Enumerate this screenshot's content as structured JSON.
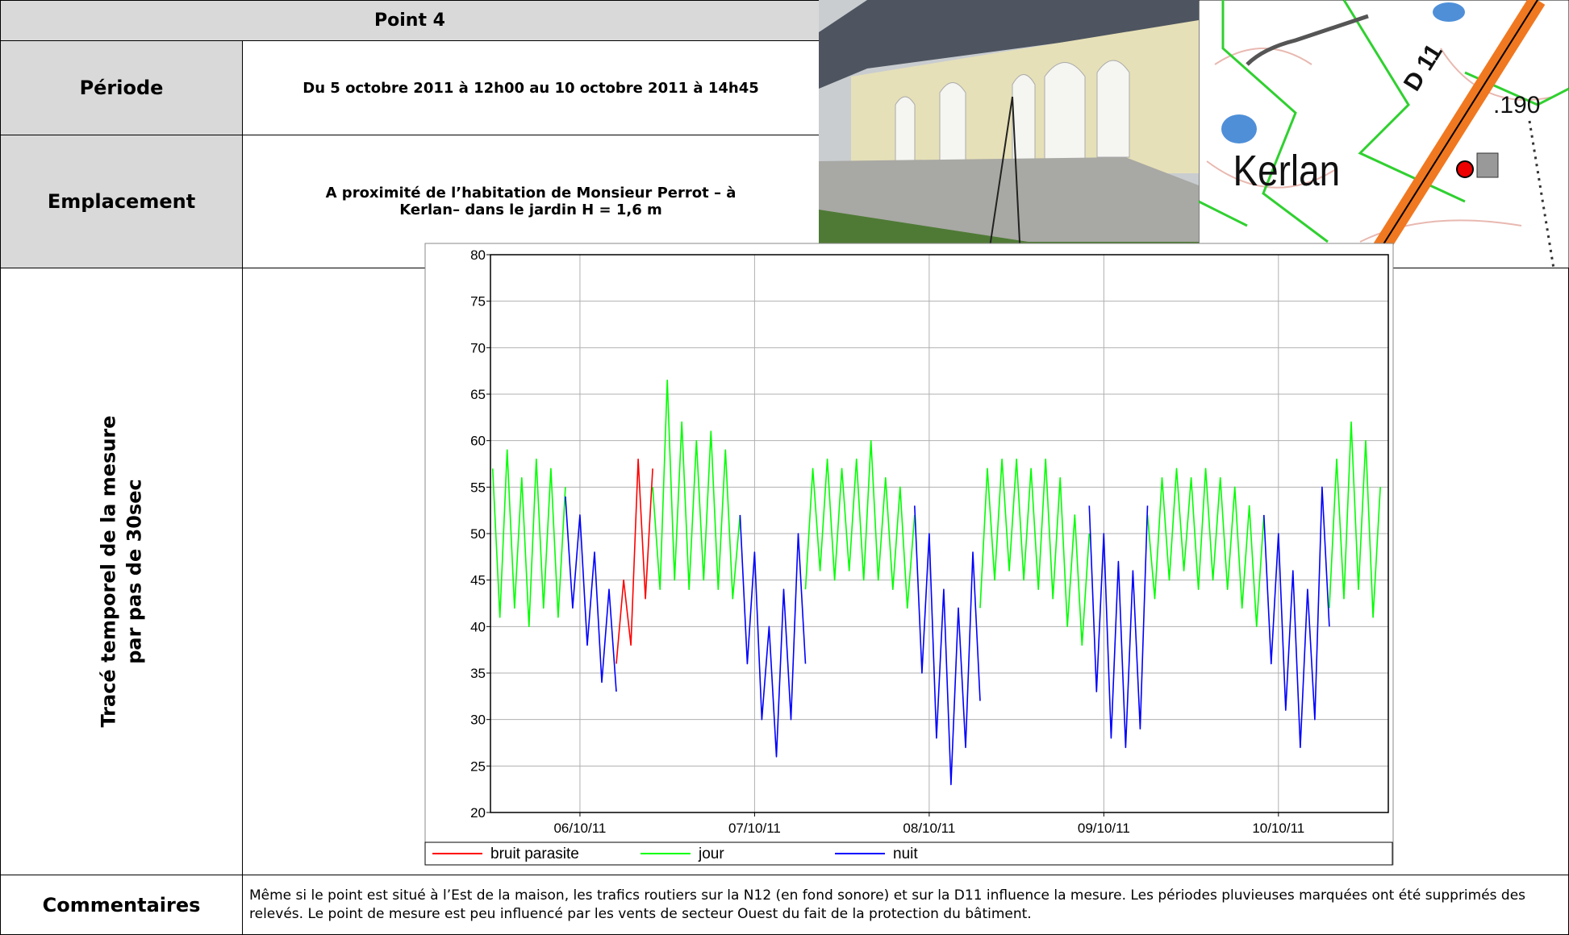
{
  "header": {
    "title": "Point 4"
  },
  "rows": [
    {
      "label": "Période",
      "lines": [
        "Du 5 octobre 2011 à 12h00 au 10 octobre 2011 à 14h45"
      ]
    },
    {
      "label": "Emplacement",
      "lines": [
        "A proximité de l’habitation de Monsieur Perrot – à",
        "Kerlan– dans le jardin H = 1,6 m"
      ]
    }
  ],
  "map": {
    "labels": [
      "Kerlan",
      "D 11",
      ".190"
    ]
  },
  "chart_label": [
    "Tracé temporel de la mesure",
    "par pas de 30sec"
  ],
  "chart_data": {
    "type": "line",
    "grid": true,
    "legend": "bottom",
    "xlim": [
      11.7,
      135.1
    ],
    "xticks": [
      {
        "value": 24,
        "label": "06/10/11"
      },
      {
        "value": 48,
        "label": "07/10/11"
      },
      {
        "value": 72,
        "label": "08/10/11"
      },
      {
        "value": 96,
        "label": "09/10/11"
      },
      {
        "value": 120,
        "label": "10/10/11"
      }
    ],
    "ylim": [
      20,
      80
    ],
    "yticks": [
      20,
      25,
      30,
      35,
      40,
      45,
      50,
      55,
      60,
      65,
      70,
      75,
      80
    ],
    "series": [
      {
        "name": "bruit parasite",
        "color": "#ff0000",
        "x": [
          29,
          30,
          31,
          32,
          33,
          34
        ],
        "values": [
          36,
          45,
          38,
          58,
          43,
          57
        ]
      },
      {
        "name": "jour",
        "color": "#00ff00",
        "x": [
          12,
          13,
          14,
          15,
          16,
          17,
          18,
          19,
          20,
          21,
          22,
          28,
          34,
          35,
          36,
          37,
          38,
          39,
          40,
          41,
          42,
          43,
          44,
          45,
          46,
          50,
          55,
          56,
          57,
          58,
          59,
          60,
          61,
          62,
          63,
          64,
          65,
          66,
          67,
          68,
          69,
          70,
          75,
          79,
          80,
          81,
          82,
          83,
          84,
          85,
          86,
          87,
          88,
          89,
          90,
          91,
          92,
          93,
          94,
          98,
          102,
          103,
          104,
          105,
          106,
          107,
          108,
          109,
          110,
          111,
          112,
          113,
          114,
          115,
          116,
          117,
          118,
          122,
          127,
          128,
          129,
          130,
          131,
          132,
          133,
          134
        ],
        "values": [
          57,
          41,
          59,
          42,
          56,
          40,
          58,
          42,
          57,
          41,
          55,
          null,
          55,
          44,
          66.5,
          45,
          62,
          44,
          60,
          45,
          61,
          44,
          59,
          43,
          52,
          null,
          44,
          57,
          46,
          58,
          45,
          57,
          46,
          58,
          45,
          60,
          45,
          56,
          44,
          55,
          42,
          52,
          null,
          42,
          57,
          45,
          58,
          46,
          58,
          45,
          57,
          44,
          58,
          43,
          56,
          40,
          52,
          38,
          50,
          null,
          52,
          43,
          56,
          45,
          57,
          46,
          56,
          44,
          57,
          45,
          56,
          44,
          55,
          42,
          53,
          40,
          52,
          null,
          42,
          58,
          43,
          62,
          44,
          60,
          41,
          55
        ]
      },
      {
        "name": "nuit",
        "color": "#0000ff",
        "x": [
          22,
          23,
          24,
          25,
          26,
          27,
          28,
          29,
          31,
          46,
          47,
          48,
          49,
          50,
          51,
          52,
          53,
          54,
          55,
          62,
          70,
          71,
          72,
          73,
          74,
          75,
          76,
          77,
          78,
          79,
          86,
          94,
          95,
          96,
          97,
          98,
          99,
          100,
          101,
          102,
          110,
          118,
          119,
          120,
          121,
          122,
          123,
          124,
          125,
          126,
          127
        ],
        "values": [
          54,
          42,
          52,
          38,
          48,
          34,
          44,
          33,
          null,
          52,
          36,
          48,
          30,
          40,
          26,
          44,
          30,
          50,
          36,
          null,
          53,
          35,
          50,
          28,
          44,
          23,
          42,
          27,
          48,
          32,
          null,
          53,
          33,
          50,
          28,
          47,
          27,
          46,
          29,
          53,
          null,
          52,
          36,
          50,
          31,
          46,
          27,
          44,
          30,
          55,
          40
        ]
      }
    ]
  },
  "comments": {
    "label": "Commentaires",
    "text": "Même si le point est situé à l’Est de la maison, les trafics routiers sur la N12 (en fond sonore) et sur la D11 influence la mesure. Les périodes pluvieuses marquées ont été supprimés des relevés. Le point de mesure est peu influencé par les vents de secteur Ouest du fait de la protection du bâtiment."
  }
}
